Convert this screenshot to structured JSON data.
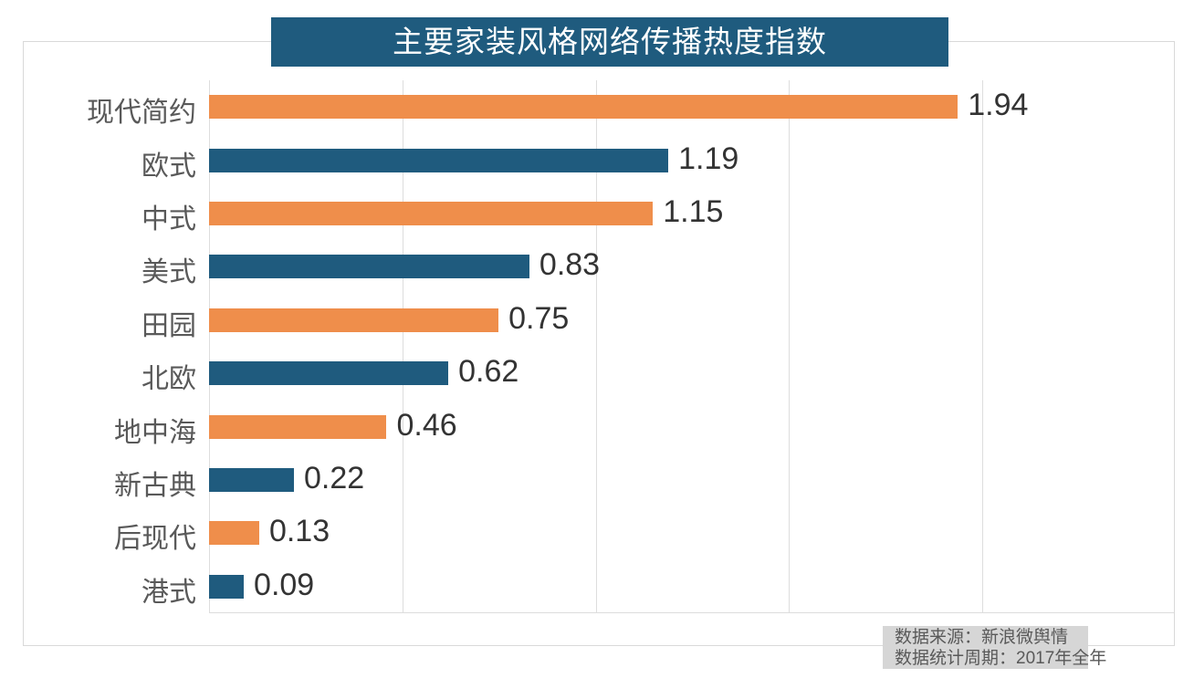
{
  "title": {
    "text": "主要家装风格网络传播热度指数",
    "bg_color": "#1F5B7E",
    "text_color": "#FFFFFF"
  },
  "chart_data": {
    "type": "bar",
    "orientation": "horizontal",
    "title": "主要家装风格网络传播热度指数",
    "categories": [
      "现代简约",
      "欧式",
      "中式",
      "美式",
      "田园",
      "北欧",
      "地中海",
      "新古典",
      "后现代",
      "港式"
    ],
    "values": [
      1.94,
      1.19,
      1.15,
      0.83,
      0.75,
      0.62,
      0.46,
      0.22,
      0.13,
      0.09
    ],
    "value_labels": [
      "1.94",
      "1.19",
      "1.15",
      "0.83",
      "0.75",
      "0.62",
      "0.46",
      "0.22",
      "0.13",
      "0.09"
    ],
    "xlim": [
      0,
      2.5
    ],
    "gridline_interval": 0.5,
    "grid": true,
    "legend": "none",
    "bar_colors_alternating": [
      "#EF8E4B",
      "#1F5B7E"
    ],
    "category_label_color": "#595959",
    "value_label_color": "#333333",
    "gridline_color": "#DDDDDD"
  },
  "footnote": {
    "line1": "数据来源：新浪微舆情",
    "line2": "数据统计周期：2017年全年",
    "bg_color": "#D6D6D6"
  }
}
